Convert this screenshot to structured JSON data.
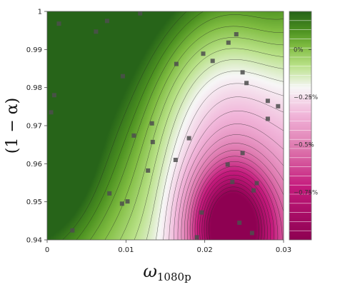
{
  "chart_data": {
    "type": "contour",
    "xlabel": "ω",
    "xlabel_sub": "1080p",
    "ylabel": "(1 − α)",
    "xlim": [
      0,
      0.03
    ],
    "ylim": [
      0.94,
      1.0
    ],
    "x_ticks": [
      "0",
      "0.01",
      "0.02",
      "0.03"
    ],
    "y_ticks": [
      "0.94",
      "0.95",
      "0.96",
      "0.97",
      "0.98",
      "0.99",
      "1"
    ],
    "colorbar": {
      "range": [
        -1.0,
        0.2
      ],
      "ticks": [
        {
          "value": 0.0,
          "label": "0%"
        },
        {
          "value": -0.25,
          "label": "−0.25%"
        },
        {
          "value": -0.5,
          "label": "−0.5%"
        },
        {
          "value": -0.75,
          "label": "−0.75%"
        }
      ],
      "levels": 25
    },
    "colors": {
      "high": "#276419",
      "mid_high": "#7fbc41",
      "neutral": "#f7f7f7",
      "mid_low": "#de77ae",
      "low": "#8e0152",
      "marker": "#4d4d4d"
    },
    "points": [
      {
        "x": 0.0015,
        "y": 0.9968
      },
      {
        "x": 0.0062,
        "y": 0.9947
      },
      {
        "x": 0.0076,
        "y": 0.9975
      },
      {
        "x": 0.0118,
        "y": 0.9995
      },
      {
        "x": 0.0009,
        "y": 0.978
      },
      {
        "x": 0.0005,
        "y": 0.9735
      },
      {
        "x": 0.0096,
        "y": 0.983
      },
      {
        "x": 0.0164,
        "y": 0.9862
      },
      {
        "x": 0.0198,
        "y": 0.9889
      },
      {
        "x": 0.021,
        "y": 0.987
      },
      {
        "x": 0.023,
        "y": 0.9918
      },
      {
        "x": 0.024,
        "y": 0.994
      },
      {
        "x": 0.0248,
        "y": 0.984
      },
      {
        "x": 0.0253,
        "y": 0.9812
      },
      {
        "x": 0.028,
        "y": 0.9765
      },
      {
        "x": 0.0293,
        "y": 0.9751
      },
      {
        "x": 0.028,
        "y": 0.9718
      },
      {
        "x": 0.0133,
        "y": 0.9706
      },
      {
        "x": 0.011,
        "y": 0.9674
      },
      {
        "x": 0.0134,
        "y": 0.9657
      },
      {
        "x": 0.018,
        "y": 0.9667
      },
      {
        "x": 0.0248,
        "y": 0.9628
      },
      {
        "x": 0.0163,
        "y": 0.961
      },
      {
        "x": 0.0229,
        "y": 0.9598
      },
      {
        "x": 0.0128,
        "y": 0.9582
      },
      {
        "x": 0.0235,
        "y": 0.9552
      },
      {
        "x": 0.0266,
        "y": 0.9549
      },
      {
        "x": 0.0262,
        "y": 0.953
      },
      {
        "x": 0.0079,
        "y": 0.9522
      },
      {
        "x": 0.0102,
        "y": 0.9501
      },
      {
        "x": 0.0095,
        "y": 0.9495
      },
      {
        "x": 0.0196,
        "y": 0.9472
      },
      {
        "x": 0.0244,
        "y": 0.9445
      },
      {
        "x": 0.0032,
        "y": 0.9425
      },
      {
        "x": 0.026,
        "y": 0.9418
      },
      {
        "x": 0.019,
        "y": 0.9407
      }
    ]
  }
}
